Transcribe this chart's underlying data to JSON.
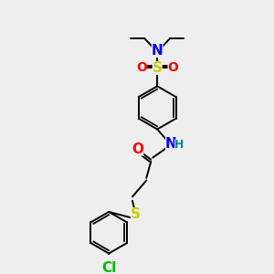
{
  "bg_color": "#eeeeee",
  "bond_color": "#000000",
  "atom_colors": {
    "N": "#0000ff",
    "O": "#ff0000",
    "S_sulfonyl": "#cccc00",
    "S_thio": "#cccc00",
    "Cl": "#00bb00",
    "H": "#008888",
    "C": "#000000"
  },
  "figsize": [
    3.0,
    3.0
  ],
  "dpi": 100
}
